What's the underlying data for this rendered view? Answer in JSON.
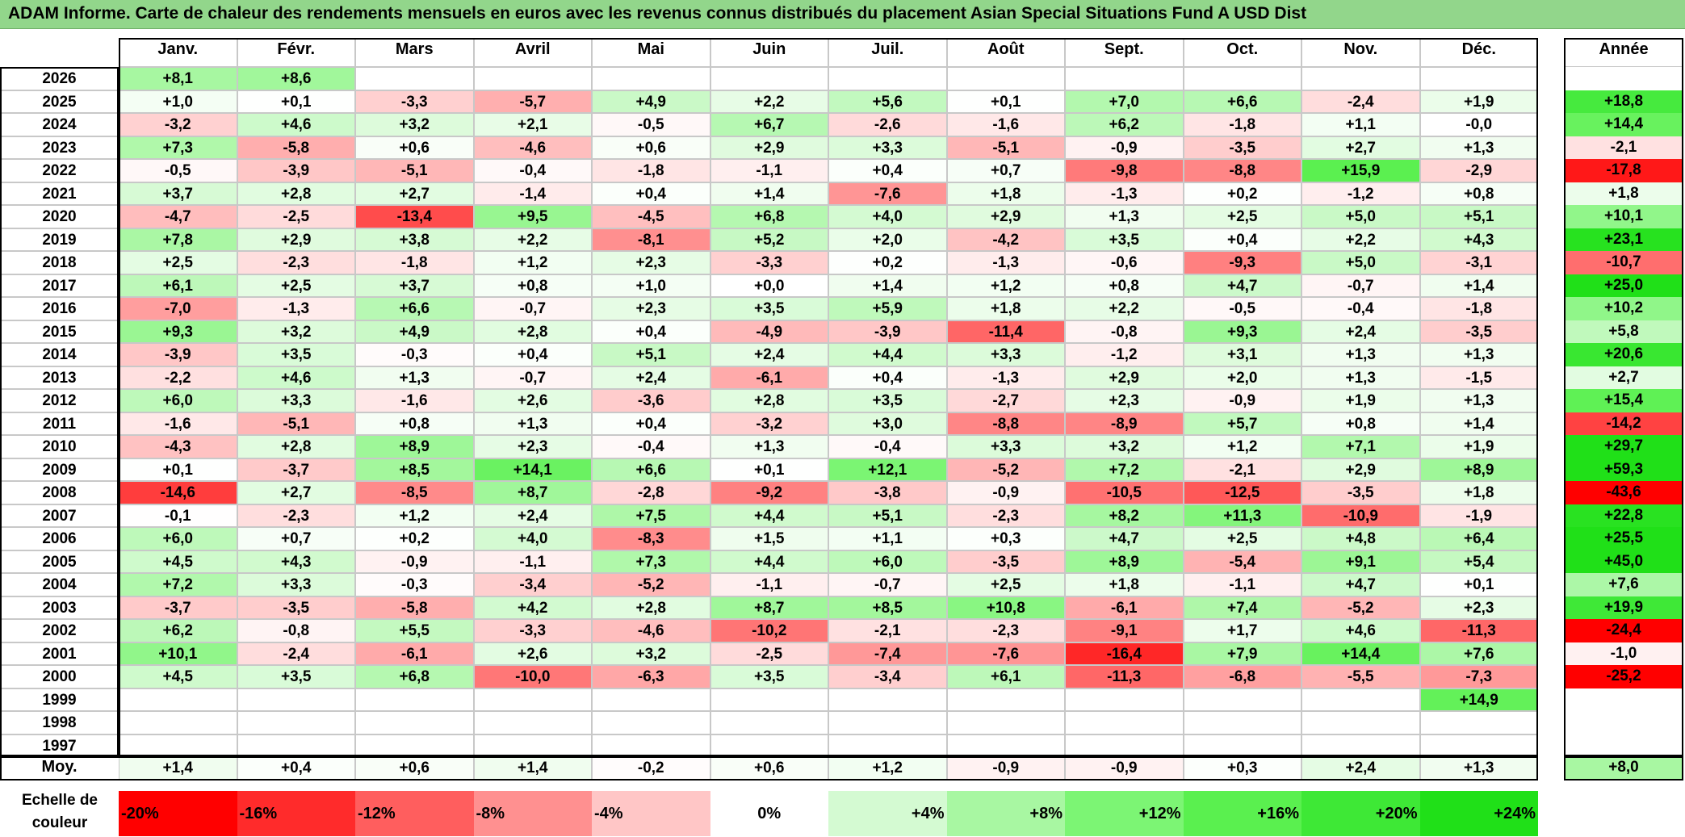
{
  "title": "ADAM Informe. Carte de chaleur des rendements mensuels en euros avec les revenus connus distribués du placement Asian Special Situations Fund A USD Dist",
  "chart_data": {
    "type": "heatmap",
    "months": [
      "Janv.",
      "Févr.",
      "Mars",
      "Avril",
      "Mai",
      "Juin",
      "Juil.",
      "Août",
      "Sept.",
      "Oct.",
      "Nov.",
      "Déc."
    ],
    "annual_header": "Année",
    "rows": [
      {
        "year": "2026",
        "months": [
          "+8,1",
          "+8,6",
          "",
          "",
          "",
          "",
          "",
          "",
          "",
          "",
          "",
          ""
        ],
        "annual": ""
      },
      {
        "year": "2025",
        "months": [
          "+1,0",
          "+0,1",
          "-3,3",
          "-5,7",
          "+4,9",
          "+2,2",
          "+5,6",
          "+0,1",
          "+7,0",
          "+6,6",
          "-2,4",
          "+1,9"
        ],
        "annual": "+18,8"
      },
      {
        "year": "2024",
        "months": [
          "-3,2",
          "+4,6",
          "+3,2",
          "+2,1",
          "-0,5",
          "+6,7",
          "-2,6",
          "-1,6",
          "+6,2",
          "-1,8",
          "+1,1",
          "-0,0"
        ],
        "annual": "+14,4"
      },
      {
        "year": "2023",
        "months": [
          "+7,3",
          "-5,8",
          "+0,6",
          "-4,6",
          "+0,6",
          "+2,9",
          "+3,3",
          "-5,1",
          "-0,9",
          "-3,5",
          "+2,7",
          "+1,3"
        ],
        "annual": "-2,1"
      },
      {
        "year": "2022",
        "months": [
          "-0,5",
          "-3,9",
          "-5,1",
          "-0,4",
          "-1,8",
          "-1,1",
          "+0,4",
          "+0,7",
          "-9,8",
          "-8,8",
          "+15,9",
          "-2,9"
        ],
        "annual": "-17,8"
      },
      {
        "year": "2021",
        "months": [
          "+3,7",
          "+2,8",
          "+2,7",
          "-1,4",
          "+0,4",
          "+1,4",
          "-7,6",
          "+1,8",
          "-1,3",
          "+0,2",
          "-1,2",
          "+0,8"
        ],
        "annual": "+1,8"
      },
      {
        "year": "2020",
        "months": [
          "-4,7",
          "-2,5",
          "-13,4",
          "+9,5",
          "-4,5",
          "+6,8",
          "+4,0",
          "+2,9",
          "+1,3",
          "+2,5",
          "+5,0",
          "+5,1"
        ],
        "annual": "+10,1"
      },
      {
        "year": "2019",
        "months": [
          "+7,8",
          "+2,9",
          "+3,8",
          "+2,2",
          "-8,1",
          "+5,2",
          "+2,0",
          "-4,2",
          "+3,5",
          "+0,4",
          "+2,2",
          "+4,3"
        ],
        "annual": "+23,1"
      },
      {
        "year": "2018",
        "months": [
          "+2,5",
          "-2,3",
          "-1,8",
          "+1,2",
          "+2,3",
          "-3,3",
          "+0,2",
          "-1,3",
          "-0,6",
          "-9,3",
          "+5,0",
          "-3,1"
        ],
        "annual": "-10,7"
      },
      {
        "year": "2017",
        "months": [
          "+6,1",
          "+2,5",
          "+3,7",
          "+0,8",
          "+1,0",
          "+0,0",
          "+1,4",
          "+1,2",
          "+0,8",
          "+4,7",
          "-0,7",
          "+1,4"
        ],
        "annual": "+25,0"
      },
      {
        "year": "2016",
        "months": [
          "-7,0",
          "-1,3",
          "+6,6",
          "-0,7",
          "+2,3",
          "+3,5",
          "+5,9",
          "+1,8",
          "+2,2",
          "-0,5",
          "-0,4",
          "-1,8"
        ],
        "annual": "+10,2"
      },
      {
        "year": "2015",
        "months": [
          "+9,3",
          "+3,2",
          "+4,9",
          "+2,8",
          "+0,4",
          "-4,9",
          "-3,9",
          "-11,4",
          "-0,8",
          "+9,3",
          "+2,4",
          "-3,5"
        ],
        "annual": "+5,8"
      },
      {
        "year": "2014",
        "months": [
          "-3,9",
          "+3,5",
          "-0,3",
          "+0,4",
          "+5,1",
          "+2,4",
          "+4,4",
          "+3,3",
          "-1,2",
          "+3,1",
          "+1,3",
          "+1,3"
        ],
        "annual": "+20,6"
      },
      {
        "year": "2013",
        "months": [
          "-2,2",
          "+4,6",
          "+1,3",
          "-0,7",
          "+2,4",
          "-6,1",
          "+0,4",
          "-1,3",
          "+2,9",
          "+2,0",
          "+1,3",
          "-1,5"
        ],
        "annual": "+2,7"
      },
      {
        "year": "2012",
        "months": [
          "+6,0",
          "+3,3",
          "-1,6",
          "+2,6",
          "-3,6",
          "+2,8",
          "+3,5",
          "-2,7",
          "+2,3",
          "-0,9",
          "+1,9",
          "+1,3"
        ],
        "annual": "+15,4"
      },
      {
        "year": "2011",
        "months": [
          "-1,6",
          "-5,1",
          "+0,8",
          "+1,3",
          "+0,4",
          "-3,2",
          "+3,0",
          "-8,8",
          "-8,9",
          "+5,7",
          "+0,8",
          "+1,4"
        ],
        "annual": "-14,2"
      },
      {
        "year": "2010",
        "months": [
          "-4,3",
          "+2,8",
          "+8,9",
          "+2,3",
          "-0,4",
          "+1,3",
          "-0,4",
          "+3,3",
          "+3,2",
          "+1,2",
          "+7,1",
          "+1,9"
        ],
        "annual": "+29,7"
      },
      {
        "year": "2009",
        "months": [
          "+0,1",
          "-3,7",
          "+8,5",
          "+14,1",
          "+6,6",
          "+0,1",
          "+12,1",
          "-5,2",
          "+7,2",
          "-2,1",
          "+2,9",
          "+8,9"
        ],
        "annual": "+59,3"
      },
      {
        "year": "2008",
        "months": [
          "-14,6",
          "+2,7",
          "-8,5",
          "+8,7",
          "-2,8",
          "-9,2",
          "-3,8",
          "-0,9",
          "-10,5",
          "-12,5",
          "-3,5",
          "+1,8"
        ],
        "annual": "-43,6"
      },
      {
        "year": "2007",
        "months": [
          "-0,1",
          "-2,3",
          "+1,2",
          "+2,4",
          "+7,5",
          "+4,4",
          "+5,1",
          "-2,3",
          "+8,2",
          "+11,3",
          "-10,9",
          "-1,9"
        ],
        "annual": "+22,8"
      },
      {
        "year": "2006",
        "months": [
          "+6,0",
          "+0,7",
          "+0,2",
          "+4,0",
          "-8,3",
          "+1,5",
          "+1,1",
          "+0,3",
          "+4,7",
          "+2,5",
          "+4,8",
          "+6,4"
        ],
        "annual": "+25,5"
      },
      {
        "year": "2005",
        "months": [
          "+4,5",
          "+4,3",
          "-0,9",
          "-1,1",
          "+7,3",
          "+4,4",
          "+6,0",
          "-3,5",
          "+8,9",
          "-5,4",
          "+9,1",
          "+5,4"
        ],
        "annual": "+45,0"
      },
      {
        "year": "2004",
        "months": [
          "+7,2",
          "+3,3",
          "-0,3",
          "-3,4",
          "-5,2",
          "-1,1",
          "-0,7",
          "+2,5",
          "+1,8",
          "-1,1",
          "+4,7",
          "+0,1"
        ],
        "annual": "+7,6"
      },
      {
        "year": "2003",
        "months": [
          "-3,7",
          "-3,5",
          "-5,8",
          "+4,2",
          "+2,8",
          "+8,7",
          "+8,5",
          "+10,8",
          "-6,1",
          "+7,4",
          "-5,2",
          "+2,3"
        ],
        "annual": "+19,9"
      },
      {
        "year": "2002",
        "months": [
          "+6,2",
          "-0,8",
          "+5,5",
          "-3,3",
          "-4,6",
          "-10,2",
          "-2,1",
          "-2,3",
          "-9,1",
          "+1,7",
          "+4,6",
          "-11,3"
        ],
        "annual": "-24,4"
      },
      {
        "year": "2001",
        "months": [
          "+10,1",
          "-2,4",
          "-6,1",
          "+2,6",
          "+3,2",
          "-2,5",
          "-7,4",
          "-7,6",
          "-16,4",
          "+7,9",
          "+14,4",
          "+7,6"
        ],
        "annual": "-1,0"
      },
      {
        "year": "2000",
        "months": [
          "+4,5",
          "+3,5",
          "+6,8",
          "-10,0",
          "-6,3",
          "+3,5",
          "-3,4",
          "+6,1",
          "-11,3",
          "-6,8",
          "-5,5",
          "-7,3"
        ],
        "annual": "-25,2"
      },
      {
        "year": "1999",
        "months": [
          "",
          "",
          "",
          "",
          "",
          "",
          "",
          "",
          "",
          "",
          "",
          "+14,9"
        ],
        "annual": ""
      },
      {
        "year": "1998",
        "months": [
          "",
          "",
          "",
          "",
          "",
          "",
          "",
          "",
          "",
          "",
          "",
          ""
        ],
        "annual": ""
      },
      {
        "year": "1997",
        "months": [
          "",
          "",
          "",
          "",
          "",
          "",
          "",
          "",
          "",
          "",
          "",
          ""
        ],
        "annual": ""
      }
    ],
    "average": {
      "label": "Moy.",
      "months": [
        "+1,4",
        "+0,4",
        "+0,6",
        "+1,4",
        "-0,2",
        "+0,6",
        "+1,2",
        "-0,9",
        "-0,9",
        "+0,3",
        "+2,4",
        "+1,3"
      ],
      "annual": "+8,0"
    },
    "color_scale": {
      "label": "Echelle de couleur",
      "stops": [
        {
          "label": "-20%",
          "value": -20,
          "color": "#ff0000"
        },
        {
          "label": "-16%",
          "value": -16,
          "color": "#ff2b2b"
        },
        {
          "label": "-12%",
          "value": -12,
          "color": "#ff5e5e"
        },
        {
          "label": "-8%",
          "value": -8,
          "color": "#ff9090"
        },
        {
          "label": "-4%",
          "value": -4,
          "color": "#ffc6c6"
        },
        {
          "label": "0%",
          "value": 0,
          "color": "#ffffff"
        },
        {
          "label": "+4%",
          "value": 4,
          "color": "#d4fad2"
        },
        {
          "label": "+8%",
          "value": 8,
          "color": "#a8f7a2"
        },
        {
          "label": "+12%",
          "value": 12,
          "color": "#7cf574"
        },
        {
          "label": "+16%",
          "value": 16,
          "color": "#5af04f"
        },
        {
          "label": "+20%",
          "value": 20,
          "color": "#3ee836"
        },
        {
          "label": "+24%",
          "value": 24,
          "color": "#20e018"
        }
      ]
    },
    "colors": {
      "title_bar": "#92d68b",
      "positive_max": "#20e018",
      "negative_max": "#ff0000",
      "neutral": "#ffffff"
    }
  }
}
